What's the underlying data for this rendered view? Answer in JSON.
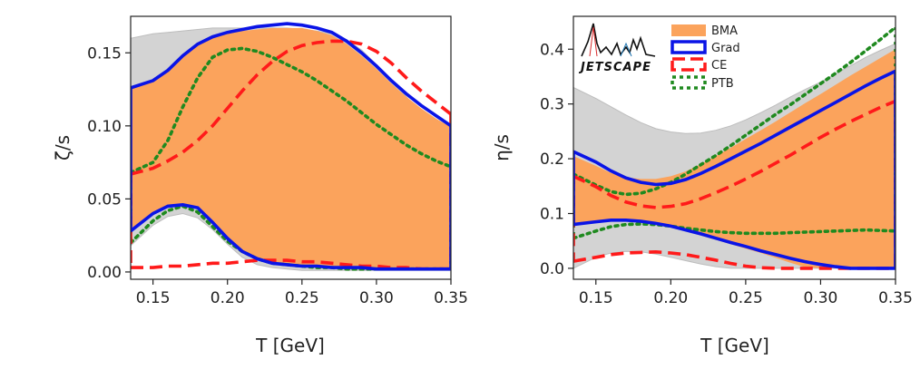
{
  "colors": {
    "prior_gray": "#d3d3d3",
    "bma": "#fba35c",
    "grad": "#0a14e6",
    "ce": "#ff1a1a",
    "ptb": "#1f8a1f"
  },
  "logo": {
    "text": "JETSCAPE"
  },
  "legend": [
    "BMA",
    "Grad",
    "CE",
    "PTB"
  ],
  "chart_data": [
    {
      "type": "area",
      "xlabel": "T [GeV]",
      "ylabel": "ζ/s",
      "xlim": [
        0.135,
        0.35
      ],
      "ylim": [
        -0.005,
        0.175
      ],
      "xticks": [
        0.15,
        0.2,
        0.25,
        0.3,
        0.35
      ],
      "yticks": [
        0.0,
        0.05,
        0.1,
        0.15
      ],
      "xtick_labels": [
        "0.15",
        "0.20",
        "0.25",
        "0.30",
        "0.35"
      ],
      "ytick_labels": [
        "0.00",
        "0.05",
        "0.10",
        "0.15"
      ],
      "x": [
        0.135,
        0.15,
        0.16,
        0.17,
        0.18,
        0.19,
        0.2,
        0.21,
        0.22,
        0.23,
        0.24,
        0.25,
        0.26,
        0.27,
        0.28,
        0.29,
        0.3,
        0.31,
        0.32,
        0.33,
        0.34,
        0.35
      ],
      "prior_band": {
        "upper": [
          0.16,
          0.163,
          0.164,
          0.165,
          0.166,
          0.167,
          0.167,
          0.167,
          0.167,
          0.167,
          0.167,
          0.166,
          0.165,
          0.163,
          0.159,
          0.152,
          0.142,
          0.131,
          0.12,
          0.11,
          0.101,
          0.093
        ],
        "lower": [
          0.018,
          0.032,
          0.038,
          0.04,
          0.037,
          0.029,
          0.019,
          0.01,
          0.005,
          0.003,
          0.002,
          0.001,
          0.001,
          0.001,
          0.001,
          0.001,
          0.001,
          0.001,
          0.001,
          0.001,
          0.001,
          0.001
        ]
      },
      "bma_band": {
        "upper": [
          0.125,
          0.131,
          0.138,
          0.147,
          0.155,
          0.16,
          0.163,
          0.165,
          0.166,
          0.167,
          0.167,
          0.167,
          0.165,
          0.162,
          0.156,
          0.148,
          0.139,
          0.129,
          0.12,
          0.112,
          0.105,
          0.099
        ],
        "lower": [
          0.028,
          0.04,
          0.044,
          0.046,
          0.043,
          0.033,
          0.022,
          0.013,
          0.008,
          0.006,
          0.004,
          0.004,
          0.003,
          0.003,
          0.003,
          0.003,
          0.002,
          0.002,
          0.002,
          0.002,
          0.002,
          0.002
        ]
      },
      "series": [
        {
          "name": "Grad",
          "role": "upper",
          "values": [
            0.126,
            0.131,
            0.138,
            0.148,
            0.156,
            0.161,
            0.164,
            0.166,
            0.168,
            0.169,
            0.17,
            0.169,
            0.167,
            0.164,
            0.158,
            0.15,
            0.141,
            0.131,
            0.122,
            0.114,
            0.107,
            0.1
          ]
        },
        {
          "name": "Grad",
          "role": "lower",
          "values": [
            0.028,
            0.04,
            0.045,
            0.046,
            0.044,
            0.034,
            0.023,
            0.014,
            0.009,
            0.006,
            0.005,
            0.004,
            0.004,
            0.003,
            0.003,
            0.003,
            0.002,
            0.002,
            0.002,
            0.002,
            0.002,
            0.002
          ]
        },
        {
          "name": "CE",
          "role": "upper",
          "values": [
            0.067,
            0.071,
            0.076,
            0.082,
            0.09,
            0.1,
            0.112,
            0.124,
            0.135,
            0.144,
            0.151,
            0.155,
            0.157,
            0.158,
            0.158,
            0.156,
            0.151,
            0.143,
            0.133,
            0.124,
            0.116,
            0.108
          ]
        },
        {
          "name": "CE",
          "role": "lower",
          "values": [
            0.003,
            0.003,
            0.004,
            0.004,
            0.005,
            0.006,
            0.006,
            0.007,
            0.008,
            0.008,
            0.008,
            0.007,
            0.007,
            0.006,
            0.005,
            0.004,
            0.004,
            0.003,
            0.003,
            0.002,
            0.002,
            0.002
          ]
        },
        {
          "name": "PTB",
          "role": "upper",
          "values": [
            0.068,
            0.075,
            0.09,
            0.113,
            0.133,
            0.147,
            0.152,
            0.153,
            0.151,
            0.147,
            0.142,
            0.137,
            0.131,
            0.124,
            0.117,
            0.109,
            0.101,
            0.094,
            0.087,
            0.081,
            0.076,
            0.072
          ]
        },
        {
          "name": "PTB",
          "role": "lower",
          "values": [
            0.02,
            0.035,
            0.042,
            0.045,
            0.041,
            0.031,
            0.021,
            0.014,
            0.009,
            0.006,
            0.005,
            0.004,
            0.003,
            0.003,
            0.002,
            0.002,
            0.002,
            0.002,
            0.002,
            0.002,
            0.002,
            0.002
          ]
        }
      ]
    },
    {
      "type": "area",
      "xlabel": "T [GeV]",
      "ylabel": "η/s",
      "xlim": [
        0.135,
        0.35
      ],
      "ylim": [
        -0.02,
        0.46
      ],
      "xticks": [
        0.15,
        0.2,
        0.25,
        0.3,
        0.35
      ],
      "yticks": [
        0.0,
        0.1,
        0.2,
        0.3,
        0.4
      ],
      "xtick_labels": [
        "0.15",
        "0.20",
        "0.25",
        "0.30",
        "0.35"
      ],
      "ytick_labels": [
        "0.0",
        "0.1",
        "0.2",
        "0.3",
        "0.4"
      ],
      "x": [
        0.135,
        0.15,
        0.16,
        0.17,
        0.18,
        0.19,
        0.2,
        0.21,
        0.22,
        0.23,
        0.24,
        0.25,
        0.26,
        0.27,
        0.28,
        0.29,
        0.3,
        0.31,
        0.32,
        0.33,
        0.34,
        0.35
      ],
      "prior_band": {
        "upper": [
          0.33,
          0.31,
          0.295,
          0.28,
          0.266,
          0.255,
          0.249,
          0.246,
          0.247,
          0.252,
          0.26,
          0.271,
          0.284,
          0.298,
          0.313,
          0.327,
          0.34,
          0.355,
          0.37,
          0.385,
          0.398,
          0.41
        ],
        "lower": [
          0.0,
          0.02,
          0.028,
          0.031,
          0.03,
          0.026,
          0.02,
          0.014,
          0.008,
          0.003,
          0.0,
          0.0,
          0.0,
          0.0,
          0.0,
          0.0,
          0.0,
          0.0,
          0.0,
          0.0,
          0.0,
          0.0
        ]
      },
      "bma_band": {
        "upper": [
          0.205,
          0.187,
          0.174,
          0.166,
          0.163,
          0.163,
          0.168,
          0.177,
          0.19,
          0.205,
          0.22,
          0.236,
          0.252,
          0.268,
          0.285,
          0.302,
          0.318,
          0.335,
          0.352,
          0.368,
          0.384,
          0.4
        ],
        "lower": [
          0.08,
          0.084,
          0.087,
          0.088,
          0.086,
          0.081,
          0.076,
          0.068,
          0.06,
          0.052,
          0.044,
          0.036,
          0.028,
          0.019,
          0.01,
          0.002,
          0.0,
          0.0,
          0.0,
          0.0,
          0.0,
          0.0
        ]
      },
      "series": [
        {
          "name": "Grad",
          "role": "upper",
          "values": [
            0.213,
            0.194,
            0.178,
            0.165,
            0.157,
            0.153,
            0.155,
            0.162,
            0.173,
            0.186,
            0.2,
            0.214,
            0.228,
            0.243,
            0.258,
            0.273,
            0.288,
            0.303,
            0.318,
            0.333,
            0.347,
            0.36
          ]
        },
        {
          "name": "Grad",
          "role": "lower",
          "values": [
            0.08,
            0.085,
            0.088,
            0.088,
            0.086,
            0.082,
            0.077,
            0.07,
            0.063,
            0.055,
            0.047,
            0.04,
            0.032,
            0.025,
            0.018,
            0.012,
            0.007,
            0.003,
            0.0,
            0.0,
            0.0,
            0.0
          ]
        },
        {
          "name": "CE",
          "role": "upper",
          "values": [
            0.168,
            0.149,
            0.133,
            0.121,
            0.114,
            0.111,
            0.113,
            0.118,
            0.127,
            0.138,
            0.15,
            0.163,
            0.177,
            0.192,
            0.207,
            0.223,
            0.239,
            0.254,
            0.268,
            0.281,
            0.294,
            0.305
          ]
        },
        {
          "name": "CE",
          "role": "lower",
          "values": [
            0.013,
            0.02,
            0.025,
            0.028,
            0.029,
            0.03,
            0.028,
            0.025,
            0.02,
            0.015,
            0.009,
            0.004,
            0.001,
            0.0,
            0.0,
            0.0,
            0.0,
            0.0,
            0.0,
            0.0,
            0.0,
            0.0
          ]
        },
        {
          "name": "PTB",
          "role": "upper",
          "values": [
            0.172,
            0.152,
            0.14,
            0.135,
            0.137,
            0.145,
            0.157,
            0.172,
            0.189,
            0.206,
            0.224,
            0.243,
            0.262,
            0.281,
            0.299,
            0.318,
            0.337,
            0.356,
            0.376,
            0.397,
            0.418,
            0.44
          ]
        },
        {
          "name": "PTB",
          "role": "lower",
          "values": [
            0.055,
            0.068,
            0.076,
            0.08,
            0.081,
            0.08,
            0.077,
            0.073,
            0.07,
            0.067,
            0.065,
            0.064,
            0.064,
            0.064,
            0.065,
            0.066,
            0.067,
            0.068,
            0.069,
            0.07,
            0.069,
            0.068
          ]
        }
      ]
    }
  ]
}
